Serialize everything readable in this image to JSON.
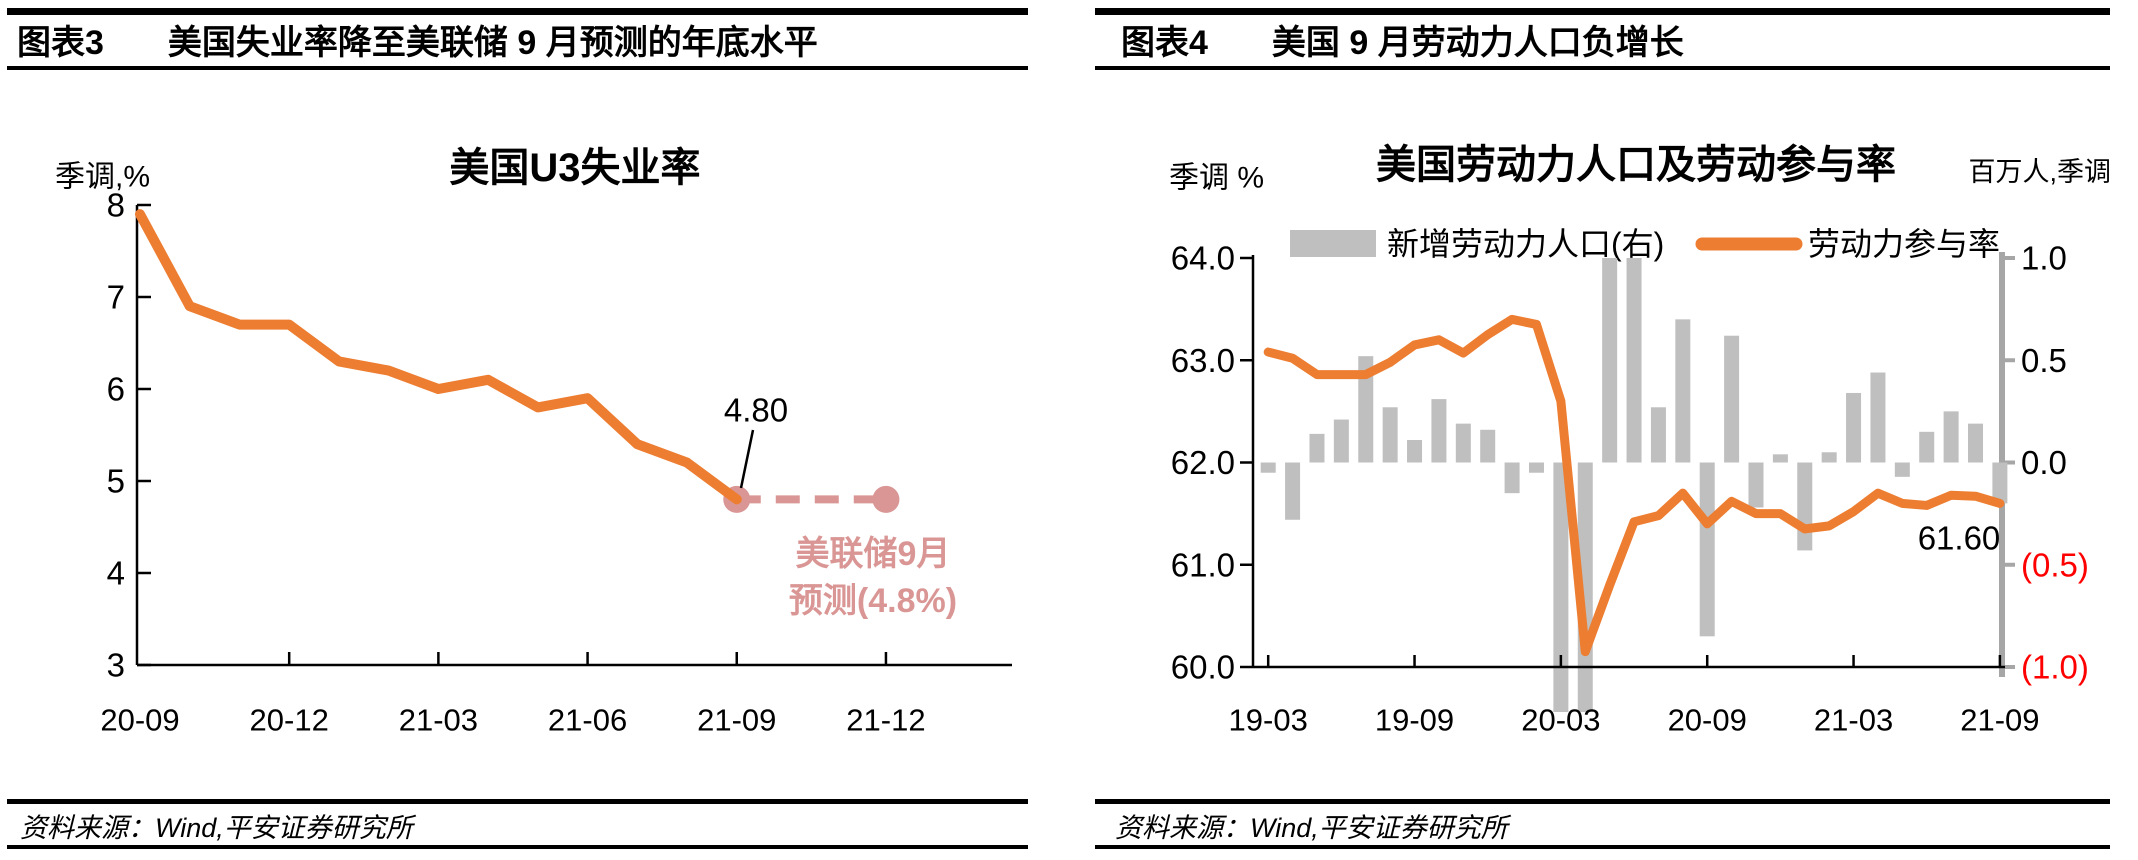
{
  "panels": [
    {
      "tag": "图表3",
      "title": "美国失业率降至美联储 9 月预测的年底水平",
      "source": "资料来源：Wind,平安证券研究所"
    },
    {
      "tag": "图表4",
      "title": "美国 9 月劳动力人口负增长",
      "source": "资料来源：Wind,平安证券研究所"
    }
  ],
  "colors": {
    "line_orange": "#ED7D31",
    "forecast_pink": "#D99694",
    "bar_gray": "#BFBFBF",
    "right_axis_gray": "#A6A6A6",
    "negative_red": "#FF0000",
    "axis_black": "#000000"
  },
  "chart_data": [
    {
      "type": "line",
      "title": "美国U3失业率",
      "y_axis_label": "季调,%",
      "ylim": [
        3,
        8
      ],
      "yticks": [
        "8",
        "7",
        "6",
        "5",
        "4",
        "3"
      ],
      "x_tick_labels": [
        "20-09",
        "20-12",
        "21-03",
        "21-06",
        "21-09",
        "21-12"
      ],
      "x_months": [
        "20-09",
        "20-10",
        "20-11",
        "20-12",
        "21-01",
        "21-02",
        "21-03",
        "21-04",
        "21-05",
        "21-06",
        "21-07",
        "21-08",
        "21-09"
      ],
      "series": [
        {
          "name": "美国U3失业率",
          "color": "#ED7D31",
          "values": [
            7.9,
            6.9,
            6.7,
            6.7,
            6.3,
            6.2,
            6.0,
            6.1,
            5.8,
            5.9,
            5.4,
            5.2,
            4.8
          ]
        },
        {
          "name": "美联储9月预测",
          "color": "#D99694",
          "style": "dashed-with-dots",
          "x_months": [
            "21-09",
            "21-12"
          ],
          "values": [
            4.8,
            4.8
          ]
        }
      ],
      "annotations": [
        {
          "id": "last-value",
          "text": "4.80"
        },
        {
          "id": "forecast-note",
          "lines": [
            "美联储9月",
            "预测(4.8%)"
          ],
          "color": "#D99694"
        }
      ],
      "grid": false,
      "legend_position": "none"
    },
    {
      "type": "bar+line",
      "title": "美国劳动力人口及劳动参与率",
      "left_axis_label": "季调 %",
      "right_axis_label": "百万人,季调",
      "left_ylim": [
        60,
        64
      ],
      "right_ylim": [
        -1,
        1
      ],
      "left_yticks": [
        "64.0",
        "63.0",
        "62.0",
        "61.0",
        "60.0"
      ],
      "right_yticks": [
        "1.0",
        "0.5",
        "0.0",
        "(0.5)",
        "(1.0)"
      ],
      "right_ytick_colors": [
        "#000000",
        "#000000",
        "#000000",
        "#FF0000",
        "#FF0000"
      ],
      "x_tick_labels": [
        "19-03",
        "19-09",
        "20-03",
        "20-09",
        "21-03",
        "21-09"
      ],
      "x_months": [
        "19-03",
        "19-04",
        "19-05",
        "19-06",
        "19-07",
        "19-08",
        "19-09",
        "19-10",
        "19-11",
        "19-12",
        "20-01",
        "20-02",
        "20-03",
        "20-04",
        "20-05",
        "20-06",
        "20-07",
        "20-08",
        "20-09",
        "20-10",
        "20-11",
        "20-12",
        "21-01",
        "21-02",
        "21-03",
        "21-04",
        "21-05",
        "21-06",
        "21-07",
        "21-08",
        "21-09"
      ],
      "legend": [
        {
          "label": "新增劳动力人口(右)",
          "color": "#BFBFBF",
          "swatch": "bar"
        },
        {
          "label": "劳动力参与率",
          "color": "#ED7D31",
          "swatch": "line"
        }
      ],
      "series": [
        {
          "name": "新增劳动力人口(右)",
          "type": "bar",
          "axis": "right",
          "color": "#BFBFBF",
          "clip_note": "bars beyond +/-1.0 are clipped at plot edge",
          "values": [
            -0.05,
            -0.28,
            0.14,
            0.21,
            0.52,
            0.27,
            0.11,
            0.31,
            0.19,
            0.16,
            -0.15,
            -0.05,
            -1.63,
            -6.43,
            1.75,
            1.71,
            0.27,
            0.7,
            -0.85,
            0.62,
            -0.22,
            0.04,
            -0.43,
            0.05,
            0.34,
            0.44,
            -0.07,
            0.15,
            0.25,
            0.19,
            -0.2
          ]
        },
        {
          "name": "劳动力参与率",
          "type": "line",
          "axis": "left",
          "color": "#ED7D31",
          "values": [
            63.08,
            63.02,
            62.86,
            62.86,
            62.86,
            62.98,
            63.15,
            63.2,
            63.07,
            63.25,
            63.4,
            63.35,
            62.6,
            60.15,
            60.8,
            61.42,
            61.48,
            61.7,
            61.4,
            61.62,
            61.5,
            61.5,
            61.35,
            61.38,
            61.52,
            61.7,
            61.6,
            61.58,
            61.68,
            61.67,
            61.6
          ]
        }
      ],
      "annotations": [
        {
          "id": "last-value",
          "text": "61.60"
        }
      ],
      "grid": false,
      "legend_position": "top"
    }
  ]
}
